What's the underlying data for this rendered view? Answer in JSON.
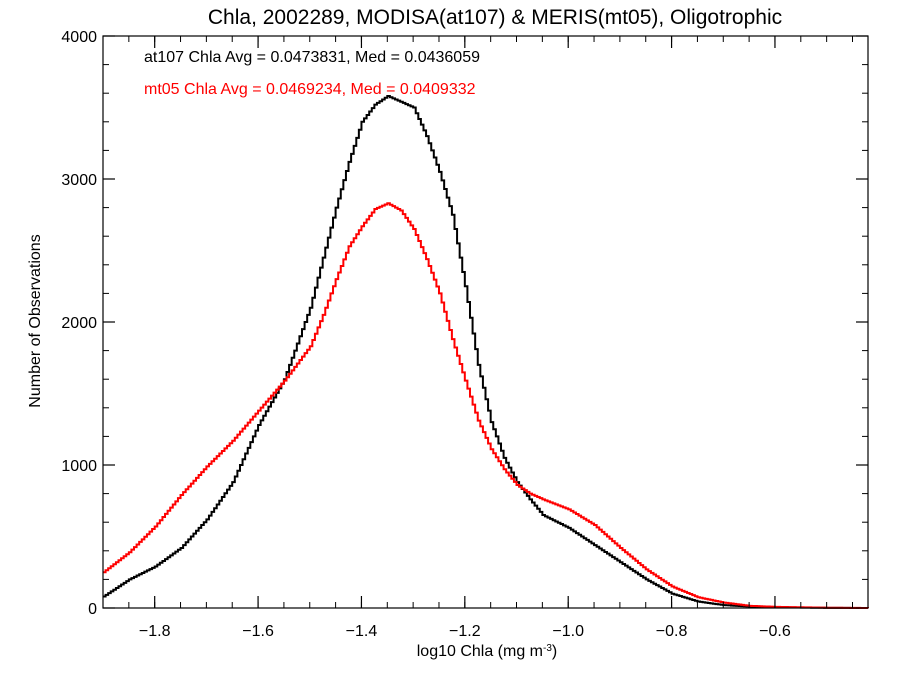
{
  "chart_data": {
    "type": "line",
    "style": "step histogram",
    "title": "Chla, 2002289, MODISA(at107) & MERIS(mt05), Oligotrophic",
    "xlabel": "log10 Chla (mg m",
    "xlabel_sup": "-3",
    "xlabel_end": ")",
    "ylabel": "Number of Observations",
    "xlim": [
      -1.9,
      -0.42
    ],
    "ylim": [
      0,
      4000
    ],
    "x_ticks": [
      -1.8,
      -1.6,
      -1.4,
      -1.2,
      -1.0,
      -0.8,
      -0.6
    ],
    "x_tick_labels": [
      "−1.8",
      "−1.6",
      "−1.4",
      "−1.2",
      "−1.0",
      "−0.8",
      "−0.6"
    ],
    "y_ticks": [
      0,
      1000,
      2000,
      3000,
      4000
    ],
    "y_tick_labels": [
      "0",
      "1000",
      "2000",
      "3000",
      "4000"
    ],
    "grid": false,
    "annotations": [
      {
        "text": "at107 Chla Avg = 0.0473831, Med = 0.0436059",
        "color": "#000000"
      },
      {
        "text": "mt05 Chla Avg = 0.0469234, Med = 0.0409332",
        "color": "#ff0000"
      }
    ],
    "series": [
      {
        "color": "#000000",
        "x": [
          -1.9,
          -1.85,
          -1.8,
          -1.75,
          -1.7,
          -1.65,
          -1.6,
          -1.55,
          -1.5,
          -1.475,
          -1.45,
          -1.425,
          -1.4,
          -1.375,
          -1.35,
          -1.325,
          -1.3,
          -1.275,
          -1.25,
          -1.225,
          -1.2,
          -1.175,
          -1.15,
          -1.125,
          -1.1,
          -1.075,
          -1.05,
          -1.0,
          -0.95,
          -0.9,
          -0.85,
          -0.8,
          -0.75,
          -0.7,
          -0.65,
          -0.6,
          -0.55,
          -0.5,
          -0.42
        ],
        "y": [
          80,
          200,
          290,
          420,
          620,
          880,
          1280,
          1600,
          2100,
          2450,
          2800,
          3120,
          3400,
          3520,
          3580,
          3540,
          3500,
          3300,
          3050,
          2750,
          2250,
          1700,
          1300,
          1050,
          880,
          760,
          650,
          560,
          440,
          320,
          200,
          100,
          45,
          20,
          10,
          5,
          3,
          1,
          0
        ]
      },
      {
        "color": "#ff0000",
        "x": [
          -1.9,
          -1.85,
          -1.8,
          -1.75,
          -1.7,
          -1.65,
          -1.6,
          -1.55,
          -1.5,
          -1.475,
          -1.45,
          -1.425,
          -1.4,
          -1.375,
          -1.35,
          -1.325,
          -1.3,
          -1.275,
          -1.25,
          -1.225,
          -1.2,
          -1.175,
          -1.15,
          -1.125,
          -1.1,
          -1.075,
          -1.05,
          -1.0,
          -0.95,
          -0.9,
          -0.85,
          -0.8,
          -0.75,
          -0.7,
          -0.65,
          -0.6,
          -0.55,
          -0.5,
          -0.42
        ],
        "y": [
          250,
          390,
          570,
          790,
          990,
          1170,
          1380,
          1590,
          1830,
          2050,
          2300,
          2530,
          2670,
          2790,
          2830,
          2780,
          2650,
          2440,
          2200,
          1880,
          1590,
          1310,
          1110,
          970,
          860,
          800,
          760,
          690,
          580,
          420,
          270,
          150,
          75,
          38,
          15,
          8,
          5,
          2,
          0
        ]
      }
    ]
  }
}
